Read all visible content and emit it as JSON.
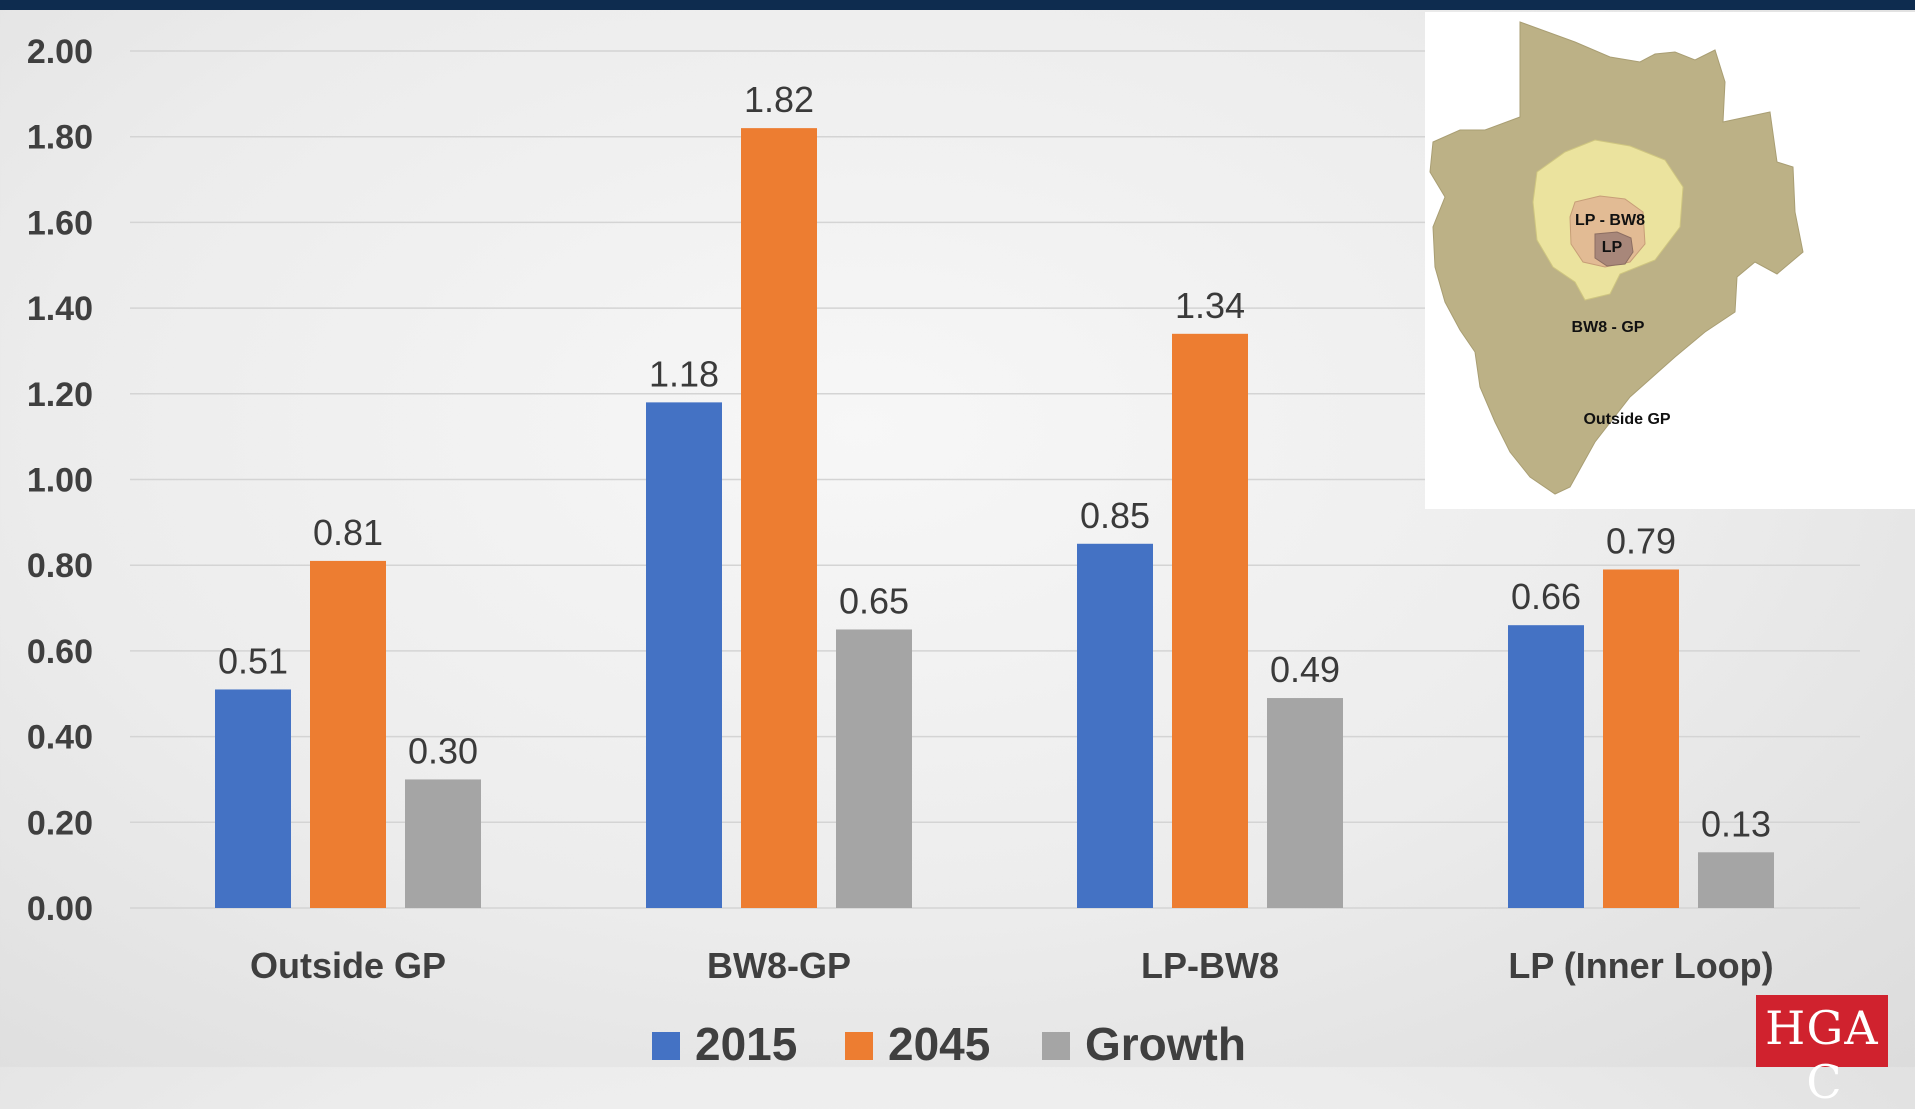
{
  "chart_data": {
    "type": "bar",
    "categories": [
      "Outside GP",
      "BW8-GP",
      "LP-BW8",
      "LP (Inner Loop)"
    ],
    "series": [
      {
        "name": "2015",
        "color": "#4472c4",
        "values": [
          0.51,
          1.18,
          0.85,
          0.66
        ]
      },
      {
        "name": "2045",
        "color": "#ed7d31",
        "values": [
          0.81,
          1.82,
          1.34,
          0.79
        ]
      },
      {
        "name": "Growth",
        "color": "#a5a5a5",
        "values": [
          0.3,
          0.65,
          0.49,
          0.13
        ]
      }
    ],
    "ylim": [
      0,
      2.0
    ],
    "yticks": [
      "0.00",
      "0.20",
      "0.40",
      "0.60",
      "0.80",
      "1.00",
      "1.20",
      "1.40",
      "1.60",
      "1.80",
      "2.00"
    ],
    "grid": true,
    "legend": "bottom-center",
    "data_labels": true
  },
  "inset_map": {
    "labels": [
      "LP - BW8",
      "LP",
      "BW8 - GP",
      "Outside GP"
    ]
  },
  "logo": {
    "text": "H-GAC",
    "color": "#d0222e"
  }
}
